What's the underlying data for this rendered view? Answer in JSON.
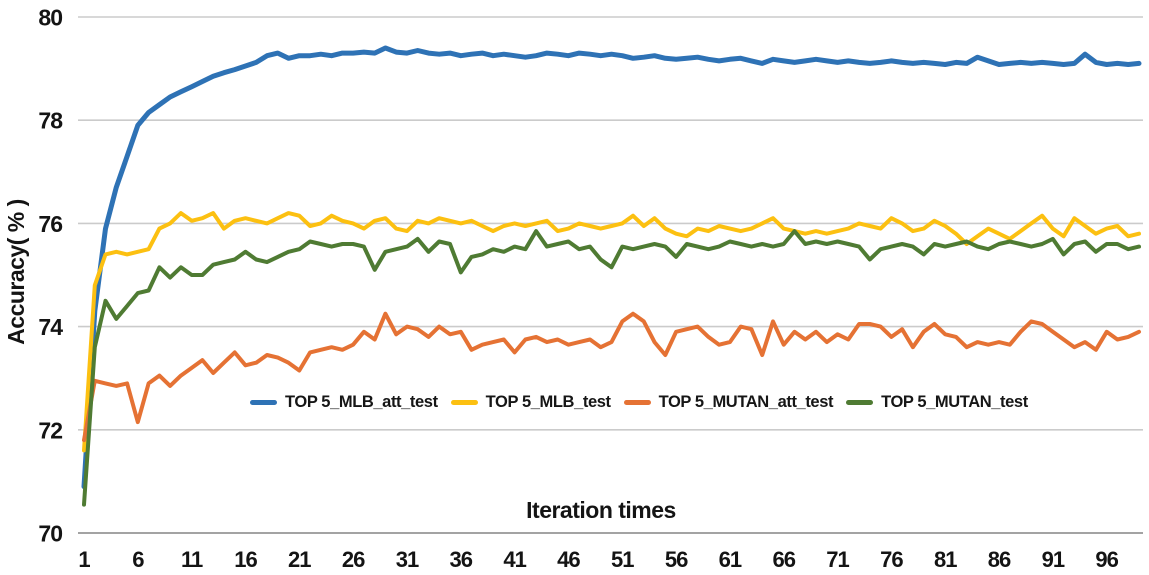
{
  "chart_data": {
    "type": "line",
    "title": "",
    "xlabel": "Iteration times",
    "ylabel": "Accuracy( % )",
    "ylim": [
      70,
      80
    ],
    "x_start": 1,
    "x_step": 1,
    "x_end": 99,
    "x_ticks": [
      1,
      6,
      11,
      16,
      21,
      26,
      31,
      36,
      41,
      46,
      51,
      56,
      61,
      66,
      71,
      76,
      81,
      86,
      91,
      96
    ],
    "y_ticks": [
      70,
      72,
      74,
      76,
      78,
      80
    ],
    "grid": "horizontal",
    "legend_position": "inside-bottom",
    "colors": {
      "grid": "#cbcbcb",
      "axis": "#a3a3a3",
      "text": "#141414"
    },
    "series": [
      {
        "name": "TOP 5_MLB_att_test",
        "color": "#2e72b5",
        "line_width": 5,
        "values": [
          70.9,
          74.3,
          75.9,
          76.7,
          77.3,
          77.9,
          78.15,
          78.3,
          78.45,
          78.55,
          78.65,
          78.75,
          78.85,
          78.92,
          78.98,
          79.05,
          79.12,
          79.25,
          79.3,
          79.2,
          79.25,
          79.25,
          79.28,
          79.25,
          79.3,
          79.3,
          79.32,
          79.3,
          79.4,
          79.32,
          79.3,
          79.35,
          79.3,
          79.28,
          79.3,
          79.25,
          79.28,
          79.3,
          79.25,
          79.28,
          79.25,
          79.22,
          79.25,
          79.3,
          79.28,
          79.25,
          79.3,
          79.28,
          79.25,
          79.28,
          79.25,
          79.2,
          79.22,
          79.25,
          79.2,
          79.18,
          79.2,
          79.22,
          79.18,
          79.15,
          79.18,
          79.2,
          79.15,
          79.1,
          79.18,
          79.15,
          79.12,
          79.15,
          79.18,
          79.15,
          79.12,
          79.15,
          79.12,
          79.1,
          79.12,
          79.15,
          79.12,
          79.1,
          79.12,
          79.1,
          79.08,
          79.12,
          79.1,
          79.22,
          79.15,
          79.08,
          79.1,
          79.12,
          79.1,
          79.12,
          79.1,
          79.08,
          79.1,
          79.28,
          79.12,
          79.08,
          79.1,
          79.08,
          79.1
        ]
      },
      {
        "name": "TOP 5_MLB_test",
        "color": "#fcc011",
        "line_width": 4,
        "values": [
          71.6,
          74.8,
          75.4,
          75.45,
          75.4,
          75.45,
          75.5,
          75.9,
          76.0,
          76.2,
          76.05,
          76.1,
          76.2,
          75.9,
          76.05,
          76.1,
          76.05,
          76.0,
          76.1,
          76.2,
          76.15,
          75.95,
          76.0,
          76.15,
          76.05,
          76.0,
          75.9,
          76.05,
          76.1,
          75.9,
          75.85,
          76.05,
          76.0,
          76.1,
          76.05,
          76.0,
          76.05,
          75.95,
          75.85,
          75.95,
          76.0,
          75.95,
          76.0,
          76.05,
          75.85,
          75.9,
          76.0,
          75.95,
          75.9,
          75.95,
          76.0,
          76.15,
          75.95,
          76.1,
          75.9,
          75.8,
          75.75,
          75.9,
          75.85,
          75.95,
          75.9,
          75.85,
          75.9,
          76.0,
          76.1,
          75.9,
          75.85,
          75.8,
          75.85,
          75.8,
          75.85,
          75.9,
          76.0,
          75.95,
          75.9,
          76.1,
          76.0,
          75.85,
          75.9,
          76.05,
          75.95,
          75.8,
          75.6,
          75.75,
          75.9,
          75.8,
          75.7,
          75.85,
          76.0,
          76.15,
          75.9,
          75.75,
          76.1,
          75.95,
          75.8,
          75.9,
          75.95,
          75.75,
          75.8
        ]
      },
      {
        "name": "TOP 5_MUTAN_att_test",
        "color": "#e57234",
        "line_width": 4,
        "values": [
          71.8,
          72.95,
          72.9,
          72.85,
          72.9,
          72.15,
          72.9,
          73.05,
          72.85,
          73.05,
          73.2,
          73.35,
          73.1,
          73.3,
          73.5,
          73.25,
          73.3,
          73.45,
          73.4,
          73.3,
          73.15,
          73.5,
          73.55,
          73.6,
          73.55,
          73.65,
          73.9,
          73.75,
          74.25,
          73.85,
          74.0,
          73.95,
          73.8,
          74.0,
          73.85,
          73.9,
          73.55,
          73.65,
          73.7,
          73.75,
          73.5,
          73.75,
          73.8,
          73.7,
          73.75,
          73.65,
          73.7,
          73.75,
          73.6,
          73.7,
          74.1,
          74.25,
          74.1,
          73.7,
          73.45,
          73.9,
          73.95,
          74.0,
          73.8,
          73.65,
          73.7,
          74.0,
          73.95,
          73.45,
          74.1,
          73.65,
          73.9,
          73.75,
          73.9,
          73.7,
          73.85,
          73.75,
          74.05,
          74.05,
          74.0,
          73.8,
          73.95,
          73.6,
          73.9,
          74.05,
          73.85,
          73.8,
          73.6,
          73.7,
          73.65,
          73.7,
          73.65,
          73.9,
          74.1,
          74.05,
          73.9,
          73.75,
          73.6,
          73.7,
          73.55,
          73.9,
          73.75,
          73.8,
          73.9
        ]
      },
      {
        "name": "TOP 5_MUTAN_test",
        "color": "#4f7b33",
        "line_width": 4,
        "values": [
          70.55,
          73.6,
          74.5,
          74.15,
          74.4,
          74.65,
          74.7,
          75.15,
          74.95,
          75.15,
          75.0,
          75.0,
          75.2,
          75.25,
          75.3,
          75.45,
          75.3,
          75.25,
          75.35,
          75.45,
          75.5,
          75.65,
          75.6,
          75.55,
          75.6,
          75.6,
          75.55,
          75.1,
          75.45,
          75.5,
          75.55,
          75.7,
          75.45,
          75.65,
          75.6,
          75.05,
          75.35,
          75.4,
          75.5,
          75.45,
          75.55,
          75.5,
          75.85,
          75.55,
          75.6,
          75.65,
          75.5,
          75.55,
          75.3,
          75.15,
          75.55,
          75.5,
          75.55,
          75.6,
          75.55,
          75.35,
          75.6,
          75.55,
          75.5,
          75.55,
          75.65,
          75.6,
          75.55,
          75.6,
          75.55,
          75.6,
          75.85,
          75.6,
          75.65,
          75.6,
          75.65,
          75.6,
          75.55,
          75.3,
          75.5,
          75.55,
          75.6,
          75.55,
          75.4,
          75.6,
          75.55,
          75.6,
          75.65,
          75.55,
          75.5,
          75.6,
          75.65,
          75.6,
          75.55,
          75.6,
          75.7,
          75.4,
          75.6,
          75.65,
          75.45,
          75.6,
          75.6,
          75.5,
          75.55
        ]
      }
    ]
  }
}
